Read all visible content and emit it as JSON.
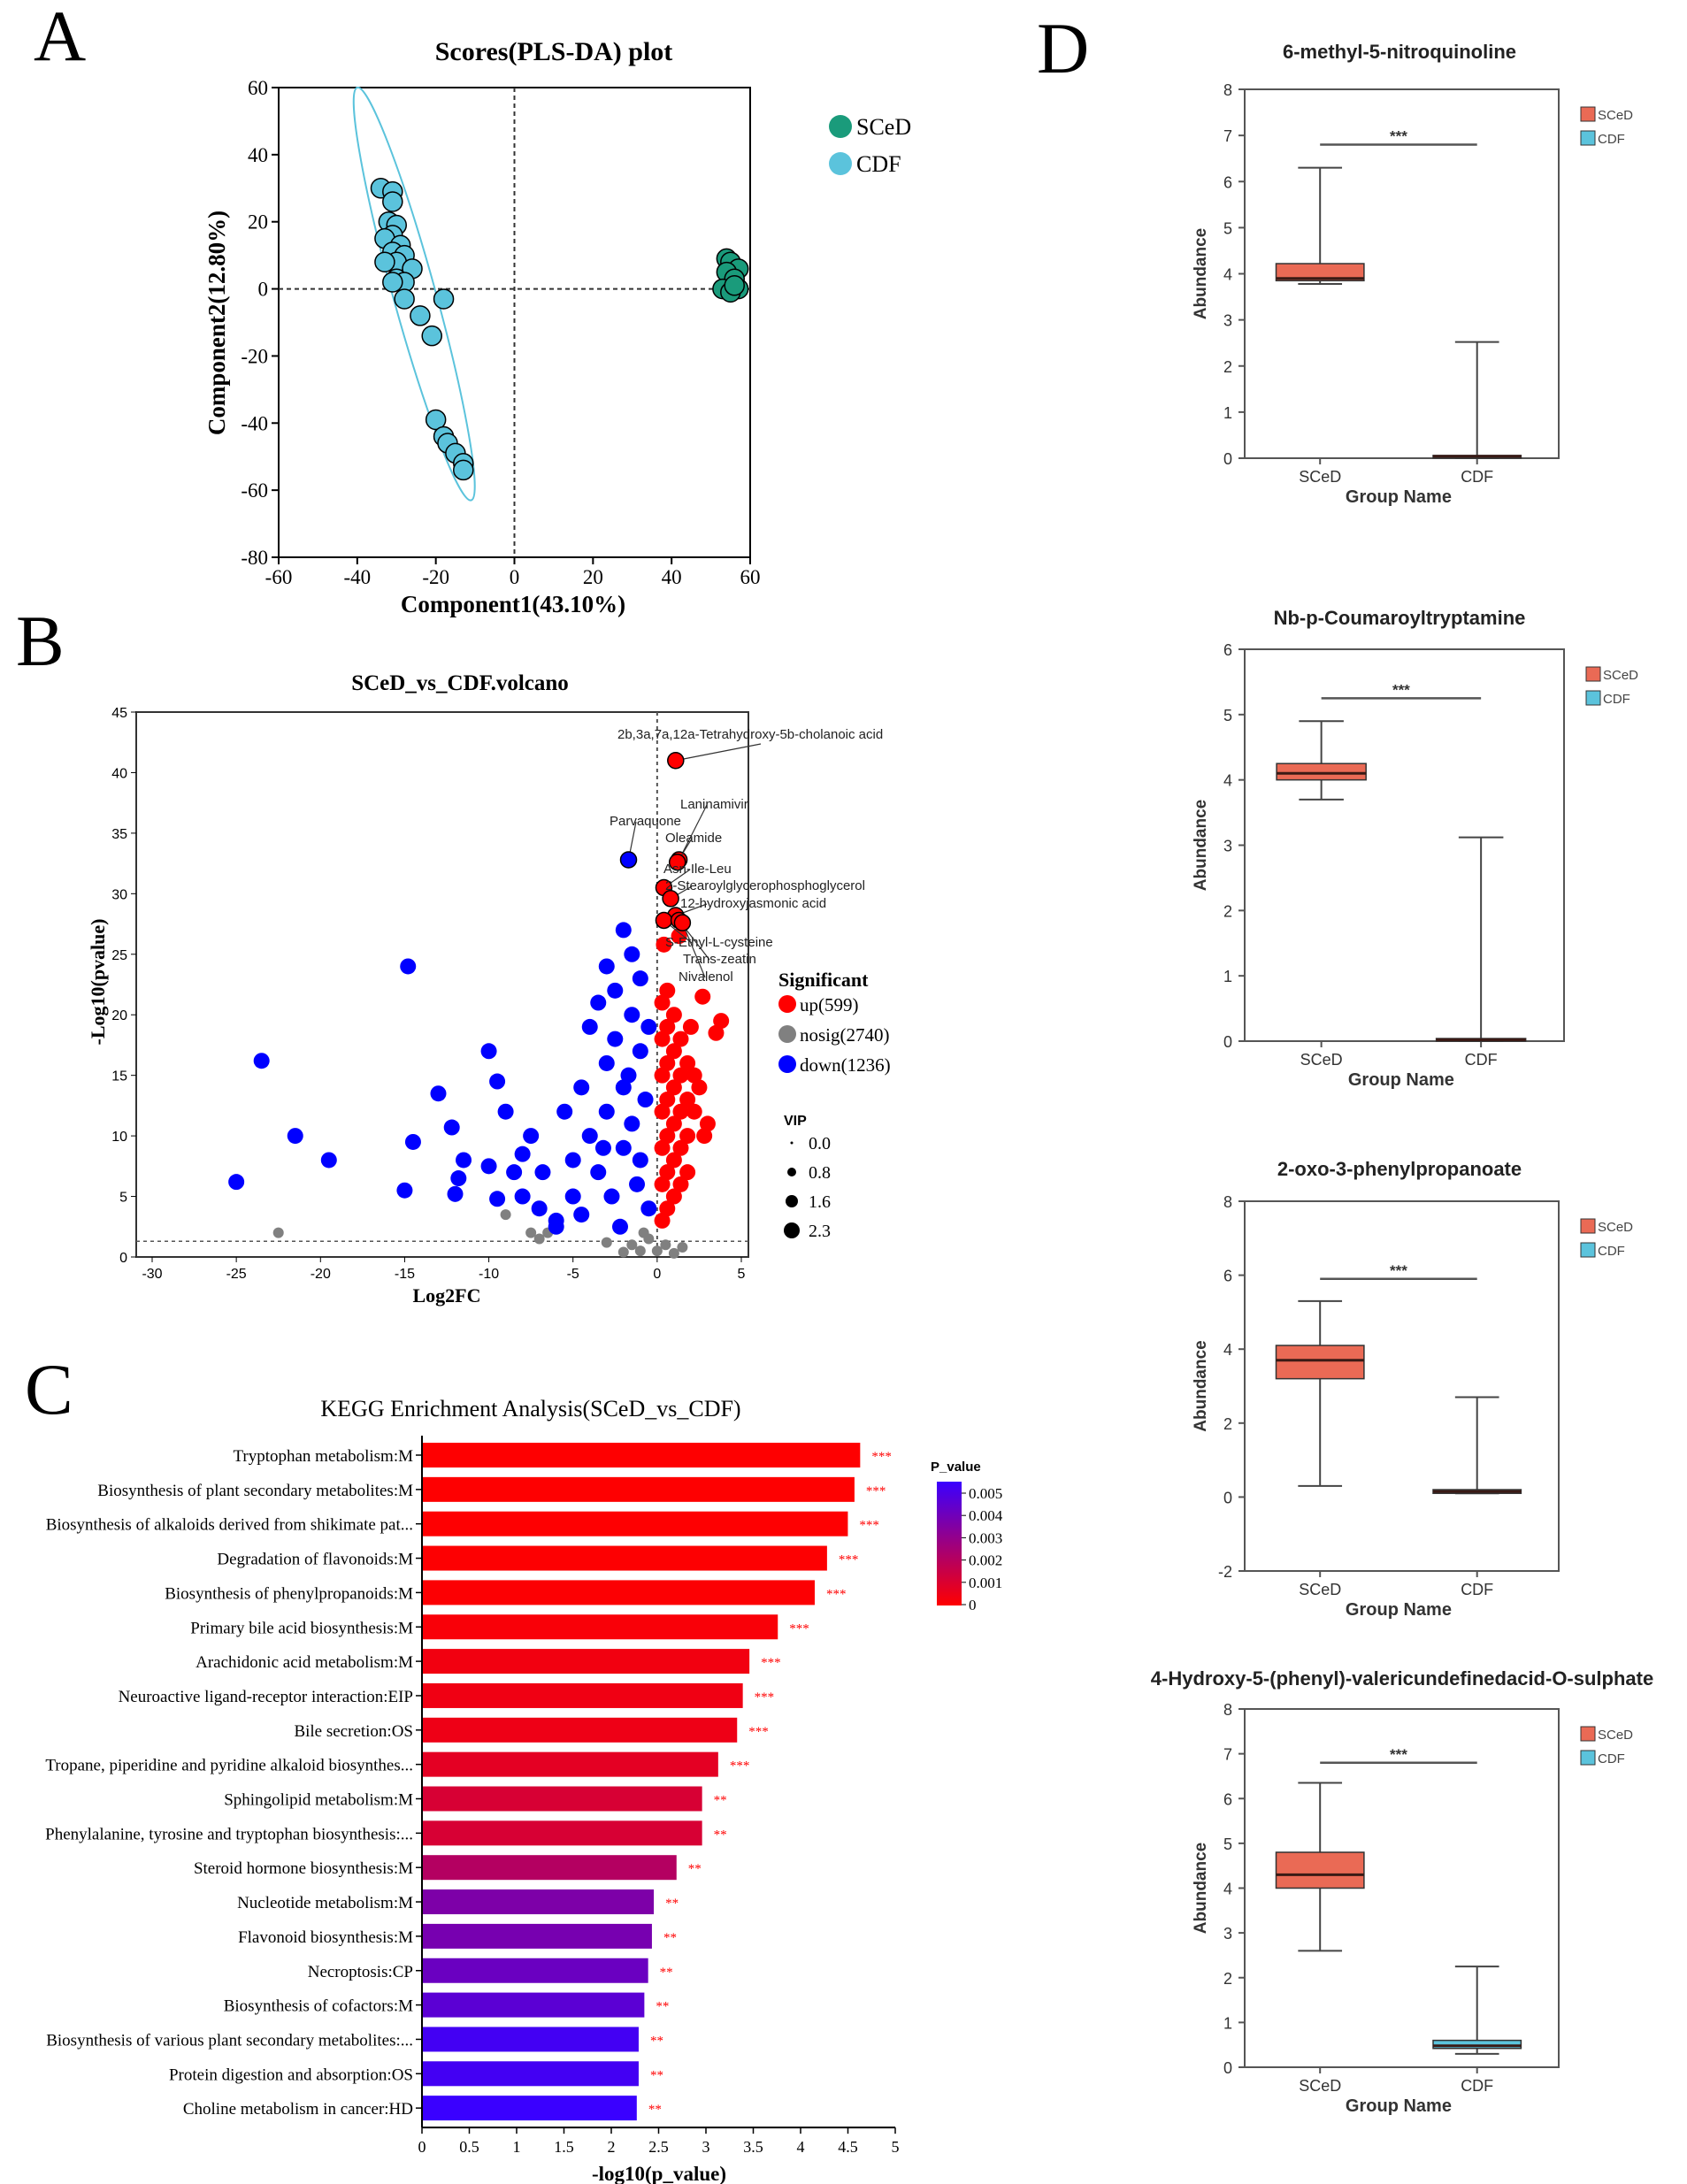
{
  "panel_letters": [
    "A",
    "B",
    "C",
    "D"
  ],
  "chart_data": [
    {
      "id": "A",
      "type": "scatter",
      "title": "Scores(PLS-DA) plot",
      "xlabel": "Component1(43.10%)",
      "ylabel": "Component2(12.80%)",
      "xlim": [
        -60,
        60
      ],
      "ylim": [
        -80,
        60
      ],
      "xticks": [
        -60,
        -40,
        -20,
        0,
        20,
        40,
        60
      ],
      "yticks": [
        -80,
        -60,
        -40,
        -20,
        0,
        20,
        40,
        60
      ],
      "legend_position": "top-right-outside",
      "series": [
        {
          "name": "SCeD",
          "color": "#1a9b7b",
          "points": [
            [
              54,
              9
            ],
            [
              55,
              8
            ],
            [
              57,
              6
            ],
            [
              54,
              5
            ],
            [
              56,
              3
            ],
            [
              53,
              0
            ],
            [
              57,
              0
            ],
            [
              55,
              -1
            ],
            [
              56,
              1
            ]
          ]
        },
        {
          "name": "CDF",
          "color": "#5bc3dc",
          "points": [
            [
              -34,
              30
            ],
            [
              -31,
              29
            ],
            [
              -31,
              26
            ],
            [
              -32,
              20
            ],
            [
              -30,
              19
            ],
            [
              -31,
              16
            ],
            [
              -33,
              15
            ],
            [
              -29,
              13
            ],
            [
              -31,
              11
            ],
            [
              -28,
              10
            ],
            [
              -30,
              8
            ],
            [
              -33,
              8
            ],
            [
              -26,
              6
            ],
            [
              -30,
              3
            ],
            [
              -28,
              2
            ],
            [
              -31,
              2
            ],
            [
              -28,
              -3
            ],
            [
              -18,
              -3
            ],
            [
              -24,
              -8
            ],
            [
              -21,
              -14
            ],
            [
              -20,
              -39
            ],
            [
              -18,
              -44
            ],
            [
              -17,
              -46
            ],
            [
              -15,
              -49
            ],
            [
              -13,
              -52
            ],
            [
              -13,
              -54
            ]
          ],
          "ellipse_axis": [
            [
              -40,
              60
            ],
            [
              -11,
              -63
            ]
          ]
        }
      ]
    },
    {
      "id": "B",
      "type": "scatter",
      "title": "SCeD_vs_CDF.volcano",
      "xlabel": "Log2FC",
      "ylabel": "-Log10(pvalue)",
      "xlim": [
        -31,
        5.5
      ],
      "ylim": [
        0,
        45
      ],
      "xticks": [
        -30,
        -25,
        -20,
        -15,
        -10,
        -5,
        0,
        5
      ],
      "yticks": [
        0,
        5,
        10,
        15,
        20,
        25,
        30,
        35,
        40,
        45
      ],
      "threshold_y": 1.3,
      "legend_title": "Significant",
      "vip_title": "VIP",
      "vip_levels": [
        "0.0",
        "0.8",
        "1.6",
        "2.3"
      ],
      "series": [
        {
          "name": "up(599)",
          "color": "#ff0000",
          "points": [
            [
              0.3,
              21
            ],
            [
              0.3,
              18
            ],
            [
              0.3,
              15
            ],
            [
              0.3,
              12
            ],
            [
              0.3,
              9
            ],
            [
              0.3,
              6
            ],
            [
              0.3,
              3
            ],
            [
              0.6,
              22
            ],
            [
              0.6,
              19
            ],
            [
              0.6,
              16
            ],
            [
              0.6,
              13
            ],
            [
              0.6,
              10
            ],
            [
              0.6,
              7
            ],
            [
              0.6,
              4
            ],
            [
              1,
              20
            ],
            [
              1,
              17
            ],
            [
              1,
              14
            ],
            [
              1,
              11
            ],
            [
              1,
              8
            ],
            [
              1,
              5
            ],
            [
              1.4,
              18
            ],
            [
              1.4,
              15
            ],
            [
              1.4,
              12
            ],
            [
              1.4,
              9
            ],
            [
              1.4,
              6
            ],
            [
              1.8,
              16
            ],
            [
              1.8,
              13
            ],
            [
              1.8,
              10
            ],
            [
              1.8,
              7
            ],
            [
              2.2,
              15
            ],
            [
              2.2,
              12
            ],
            [
              2.5,
              14
            ],
            [
              2.8,
              10
            ],
            [
              3,
              11
            ],
            [
              2.7,
              21.5
            ],
            [
              3.8,
              19.5
            ],
            [
              3.5,
              18.5
            ],
            [
              2,
              19
            ],
            [
              0.4,
              25.8
            ],
            [
              1.3,
              26.5
            ]
          ]
        },
        {
          "name": "nosig(2740)",
          "color": "#808080",
          "points": [
            [
              -22.5,
              2
            ],
            [
              -9,
              3.5
            ],
            [
              -7.5,
              2
            ],
            [
              -7,
              1.5
            ],
            [
              -6.5,
              2
            ],
            [
              -1.5,
              1
            ],
            [
              -1,
              0.5
            ],
            [
              -0.5,
              1.5
            ],
            [
              0,
              0.5
            ],
            [
              0.5,
              1
            ],
            [
              1,
              0.3
            ],
            [
              1.5,
              0.8
            ],
            [
              -2,
              0.4
            ],
            [
              -3,
              1.2
            ],
            [
              -0.8,
              2
            ]
          ]
        },
        {
          "name": "down(1236)",
          "color": "#0000ff",
          "points": [
            [
              -25,
              6.2
            ],
            [
              -23.5,
              16.2
            ],
            [
              -21.5,
              10
            ],
            [
              -19.5,
              8
            ],
            [
              -15,
              5.5
            ],
            [
              -14.8,
              24
            ],
            [
              -14.5,
              9.5
            ],
            [
              -13,
              13.5
            ],
            [
              -12.2,
              10.7
            ],
            [
              -11.8,
              6.5
            ],
            [
              -12,
              5.2
            ],
            [
              -11.5,
              8
            ],
            [
              -10,
              17
            ],
            [
              -10,
              7.5
            ],
            [
              -9.5,
              14.5
            ],
            [
              -9.5,
              4.8
            ],
            [
              -9,
              12
            ],
            [
              -8.5,
              7
            ],
            [
              -8,
              5
            ],
            [
              -7.5,
              10
            ],
            [
              -7,
              4
            ],
            [
              -6.8,
              7
            ],
            [
              -6,
              2.5
            ],
            [
              -5.5,
              12
            ],
            [
              -5,
              8
            ],
            [
              -5,
              5
            ],
            [
              -4.5,
              14
            ],
            [
              -4.5,
              3.5
            ],
            [
              -4,
              19
            ],
            [
              -4,
              10
            ],
            [
              -3.5,
              7
            ],
            [
              -3.5,
              21
            ],
            [
              -3,
              24
            ],
            [
              -3,
              16
            ],
            [
              -3,
              12
            ],
            [
              -2.7,
              5
            ],
            [
              -2.5,
              22
            ],
            [
              -2.5,
              18
            ],
            [
              -2,
              27
            ],
            [
              -2,
              14
            ],
            [
              -2,
              9
            ],
            [
              -1.5,
              25
            ],
            [
              -1.5,
              20
            ],
            [
              -1.5,
              11
            ],
            [
              -1.2,
              6
            ],
            [
              -1,
              23
            ],
            [
              -1,
              17
            ],
            [
              -1,
              8
            ],
            [
              -0.7,
              13
            ],
            [
              -0.5,
              19
            ],
            [
              -0.5,
              4
            ],
            [
              -2.2,
              2.5
            ],
            [
              -1.7,
              15
            ],
            [
              -3.2,
              9
            ],
            [
              -6,
              3
            ],
            [
              -8,
              8.5
            ]
          ]
        }
      ],
      "annotations": [
        {
          "text": "2b,3a,7a,12a-Tetrahydroxy-5b-cholanoic acid",
          "x": 1.1,
          "y": 41,
          "color": "#ff0000"
        },
        {
          "text": "Laninamivir",
          "x": 1.3,
          "y": 32.8,
          "color": "#ff0000"
        },
        {
          "text": "Parvaquone",
          "x": -1.7,
          "y": 32.8,
          "color": "#0000ff"
        },
        {
          "text": "Oleamide",
          "x": 1.2,
          "y": 32.6,
          "color": "#ff0000"
        },
        {
          "text": "Asn-Ile-Leu",
          "x": 0.4,
          "y": 30.5,
          "color": "#ff0000"
        },
        {
          "text": "2-Stearoylglycerophosphoglycerol",
          "x": 0.8,
          "y": 29.6,
          "color": "#ff0000"
        },
        {
          "text": "12-hydroxyjasmonic acid",
          "x": 1.1,
          "y": 28.2,
          "color": "#ff0000"
        },
        {
          "text": "S-Ethyl-L-cysteine",
          "x": 0.4,
          "y": 27.8,
          "color": "#ff0000"
        },
        {
          "text": "Trans-zeatin",
          "x": 1.3,
          "y": 27.8,
          "color": "#ff0000"
        },
        {
          "text": "Nivalenol",
          "x": 1.5,
          "y": 27.6,
          "color": "#ff0000"
        }
      ]
    },
    {
      "id": "C",
      "type": "bar",
      "orientation": "horizontal",
      "title": "KEGG Enrichment Analysis(SCeD_vs_CDF)",
      "xlabel": "-log10(p_value)",
      "xlim": [
        0,
        5
      ],
      "xticks": [
        "0",
        "0.5",
        "1",
        "1.5",
        "2",
        "2.5",
        "3",
        "3.5",
        "4",
        "4.5",
        "5"
      ],
      "colorbar": {
        "title": "P_value",
        "ticks": [
          "0.005",
          "0.004",
          "0.003",
          "0.002",
          "0.001",
          "0"
        ],
        "range": [
          0,
          0.0055
        ],
        "low_color": "#ff0000",
        "high_color": "#3a00ff"
      },
      "categories": [
        "Tryptophan metabolism:M",
        "Biosynthesis of plant secondary metabolites:M",
        "Biosynthesis of alkaloids derived from shikimate pat...",
        "Degradation of flavonoids:M",
        "Biosynthesis of phenylpropanoids:M",
        "Primary bile acid biosynthesis:M",
        "Arachidonic acid metabolism:M",
        "Neuroactive ligand-receptor interaction:EIP",
        "Bile secretion:OS",
        "Tropane, piperidine and pyridine alkaloid biosynthes...",
        "Sphingolipid metabolism:M",
        "Phenylalanine, tyrosine and tryptophan biosynthesis:...",
        "Steroid hormone biosynthesis:M",
        "Nucleotide metabolism:M",
        "Flavonoid biosynthesis:M",
        "Necroptosis:CP",
        "Biosynthesis of cofactors:M",
        "Biosynthesis of various plant secondary metabolites:...",
        "Protein digestion and absorption:OS",
        "Choline metabolism in cancer:HD"
      ],
      "values": [
        4.62,
        4.56,
        4.49,
        4.27,
        4.14,
        3.75,
        3.45,
        3.38,
        3.32,
        3.12,
        2.95,
        2.95,
        2.68,
        2.44,
        2.42,
        2.38,
        2.34,
        2.28,
        2.28,
        2.26
      ],
      "significance": [
        "***",
        "***",
        "***",
        "***",
        "***",
        "***",
        "***",
        "***",
        "***",
        "***",
        "**",
        "**",
        "**",
        "**",
        "**",
        "**",
        "**",
        "**",
        "**",
        "**"
      ]
    },
    {
      "id": "D1",
      "type": "box",
      "title": "6-methyl-5-nitroquinoline",
      "xlabel": "Group Name",
      "ylabel": "Abundance",
      "ylim": [
        0,
        8
      ],
      "yticks": [
        "0",
        "1",
        "2",
        "3",
        "4",
        "5",
        "6",
        "7",
        "8"
      ],
      "significance": "***",
      "sig_y": 6.8,
      "groups": [
        {
          "name": "SCeD",
          "color": "#ea6a55",
          "min": 3.78,
          "q1": 3.85,
          "median": 3.9,
          "q3": 4.22,
          "max": 6.3
        },
        {
          "name": "CDF",
          "color": "#5bc3dc",
          "min": 0,
          "q1": 0.02,
          "median": 0.04,
          "q3": 0.06,
          "max": 2.52
        }
      ]
    },
    {
      "id": "D2",
      "type": "box",
      "title": "Nb-p-Coumaroyltryptamine",
      "xlabel": "Group Name",
      "ylabel": "Abundance",
      "ylim": [
        0,
        6
      ],
      "yticks": [
        "0",
        "1",
        "2",
        "3",
        "4",
        "5",
        "6"
      ],
      "significance": "***",
      "sig_y": 5.25,
      "groups": [
        {
          "name": "SCeD",
          "color": "#ea6a55",
          "min": 3.7,
          "q1": 4.0,
          "median": 4.1,
          "q3": 4.25,
          "max": 4.9
        },
        {
          "name": "CDF",
          "color": "#5bc3dc",
          "min": 0,
          "q1": 0,
          "median": 0.02,
          "q3": 0.04,
          "max": 3.12
        }
      ]
    },
    {
      "id": "D3",
      "type": "box",
      "title": "2-oxo-3-phenylpropanoate",
      "xlabel": "Group Name",
      "ylabel": "Abundance",
      "ylim": [
        -2,
        8
      ],
      "yticks": [
        "-2",
        "0",
        "2",
        "4",
        "6",
        "8"
      ],
      "significance": "***",
      "sig_y": 5.9,
      "groups": [
        {
          "name": "SCeD",
          "color": "#ea6a55",
          "min": 0.3,
          "q1": 3.2,
          "median": 3.7,
          "q3": 4.1,
          "max": 5.3
        },
        {
          "name": "CDF",
          "color": "#5bc3dc",
          "min": 0.1,
          "q1": 0.1,
          "median": 0.15,
          "q3": 0.2,
          "max": 2.7
        }
      ]
    },
    {
      "id": "D4",
      "type": "box",
      "title": "4-Hydroxy-5-(phenyl)-valericundefinedacid-O-sulphate",
      "xlabel": "Group Name",
      "ylabel": "Abundance",
      "ylim": [
        0,
        8
      ],
      "yticks": [
        "0",
        "1",
        "2",
        "3",
        "4",
        "5",
        "6",
        "7",
        "8"
      ],
      "significance": "***",
      "sig_y": 6.8,
      "groups": [
        {
          "name": "SCeD",
          "color": "#ea6a55",
          "min": 2.6,
          "q1": 4.0,
          "median": 4.3,
          "q3": 4.8,
          "max": 6.35
        },
        {
          "name": "CDF",
          "color": "#5bc3dc",
          "min": 0.3,
          "q1": 0.42,
          "median": 0.48,
          "q3": 0.6,
          "max": 2.25
        }
      ]
    }
  ]
}
